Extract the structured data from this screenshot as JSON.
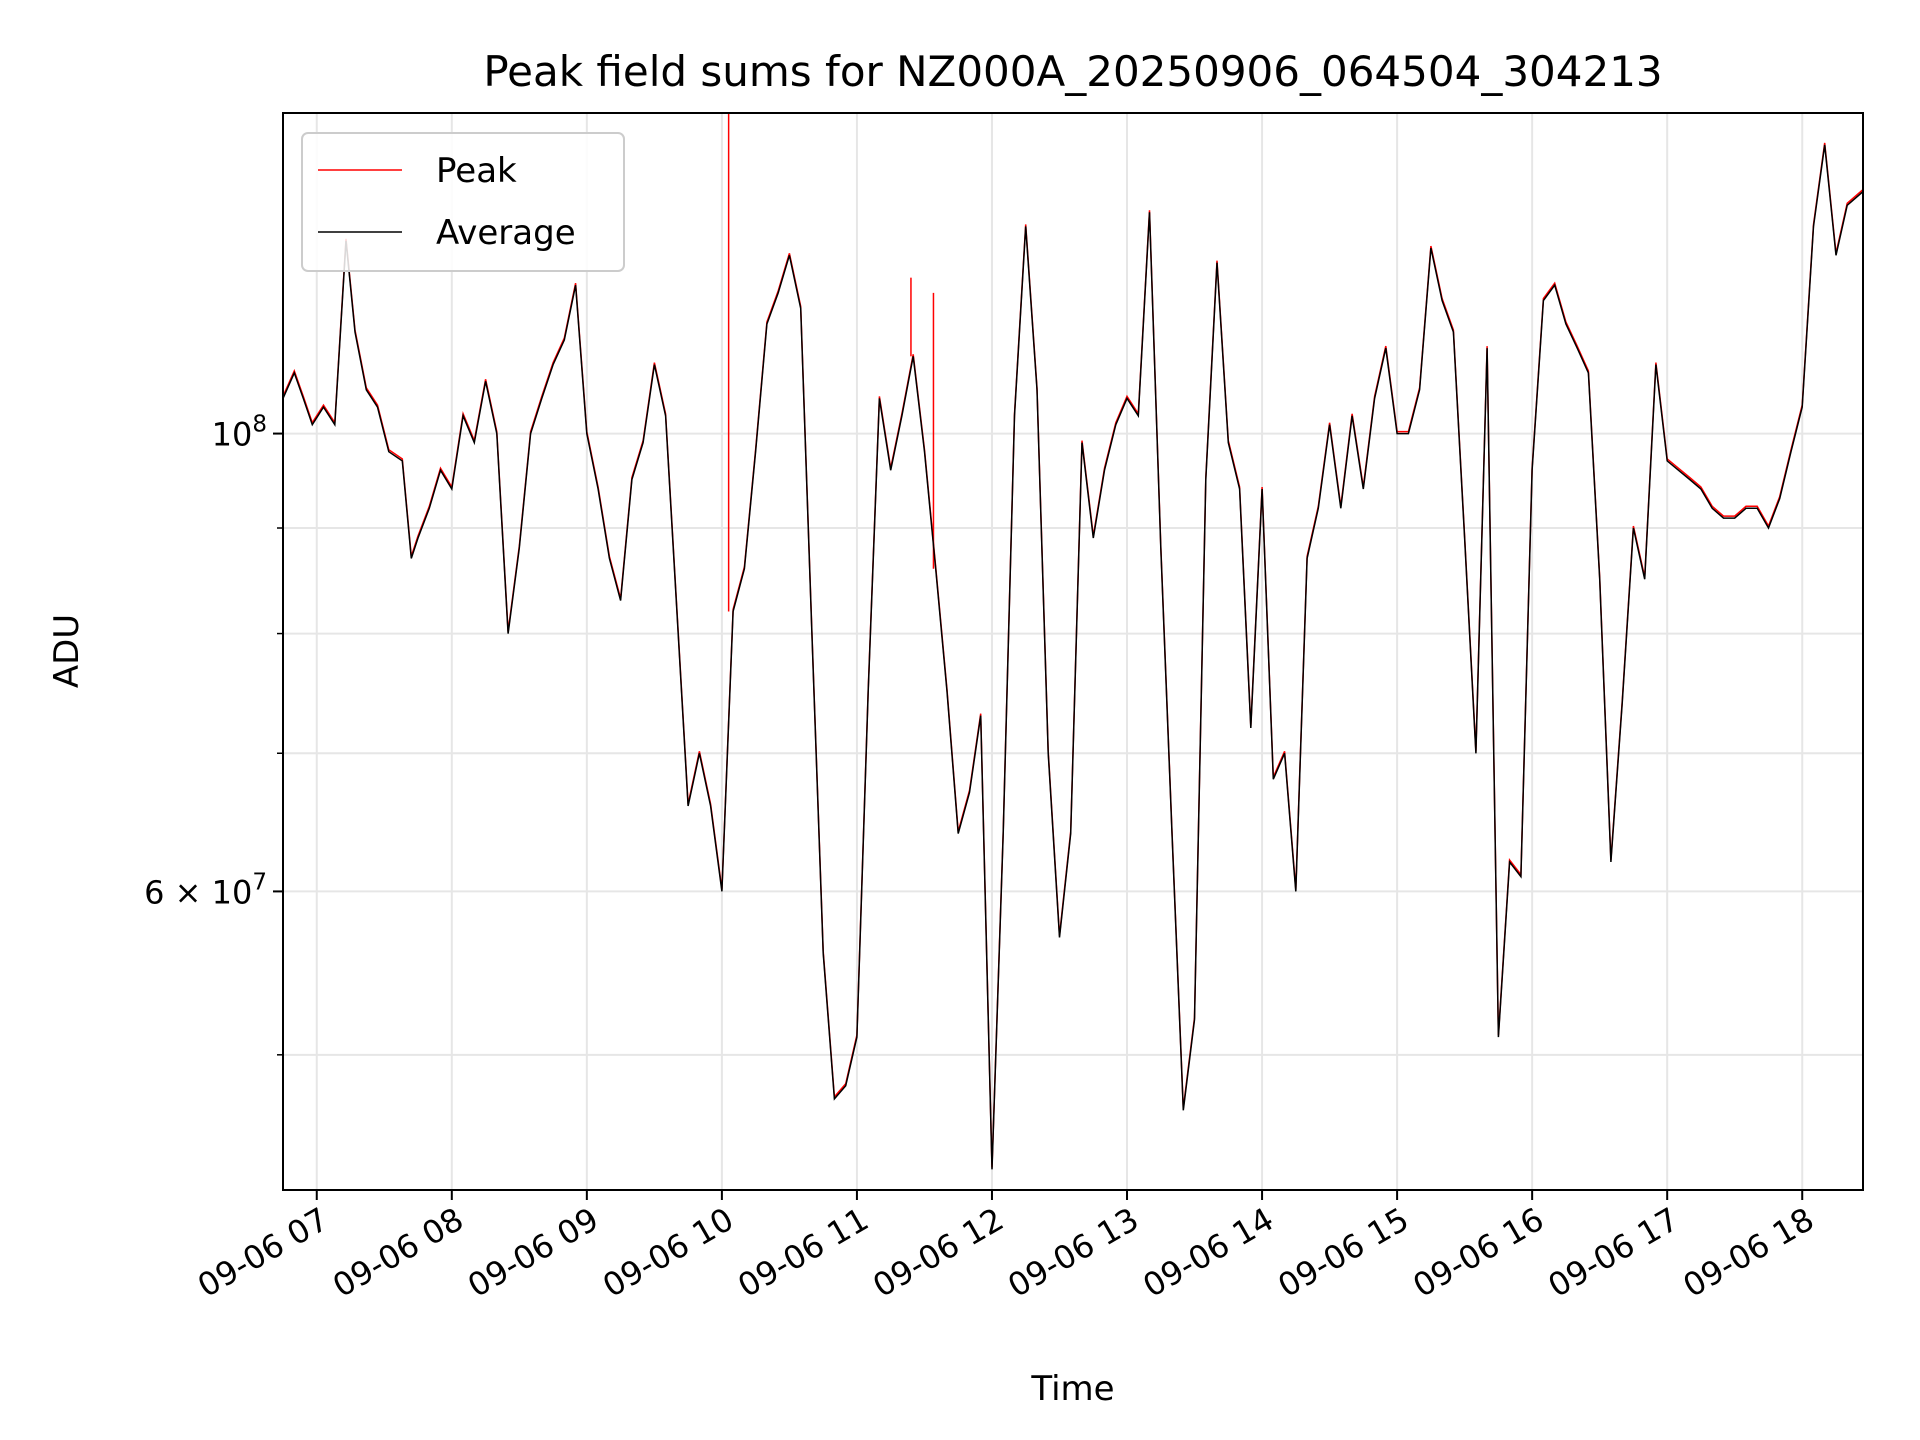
{
  "chart_data": {
    "type": "line",
    "title": "Peak field sums for NZ000A_20250906_064504_304213",
    "xlabel": "Time",
    "ylabel": "ADU",
    "y_scale": "log",
    "ylim": [
      43000000,
      143000000
    ],
    "xlim": [
      "09-06 06:45",
      "09-06 18:27"
    ],
    "x_ticks": [
      "09-06 07",
      "09-06 08",
      "09-06 09",
      "09-06 10",
      "09-06 11",
      "09-06 12",
      "09-06 13",
      "09-06 14",
      "09-06 15",
      "09-06 16",
      "09-06 17",
      "09-06 18"
    ],
    "y_ticks": [
      {
        "value": 100000000,
        "base": "10",
        "exp": "8"
      },
      {
        "value": 60000000,
        "base": "6 × 10",
        "exp": "7"
      }
    ],
    "grid": true,
    "legend": "top-left",
    "series": [
      {
        "name": "Average",
        "color": "#000000",
        "points": [
          [
            "09-06 06:45",
            104000000.0
          ],
          [
            "09-06 06:50",
            107000000.0
          ],
          [
            "09-06 06:54",
            104000000.0
          ],
          [
            "09-06 06:58",
            101000000.0
          ],
          [
            "09-06 07:03",
            103000000.0
          ],
          [
            "09-06 07:08",
            101000000.0
          ],
          [
            "09-06 07:13",
            124000000.0
          ],
          [
            "09-06 07:17",
            112000000.0
          ],
          [
            "09-06 07:22",
            105000000.0
          ],
          [
            "09-06 07:27",
            103000000.0
          ],
          [
            "09-06 07:32",
            98000000.0
          ],
          [
            "09-06 07:38",
            97000000.0
          ],
          [
            "09-06 07:42",
            87000000.0
          ],
          [
            "09-06 07:45",
            89000000.0
          ],
          [
            "09-06 07:50",
            92000000.0
          ],
          [
            "09-06 07:55",
            96000000.0
          ],
          [
            "09-06 08:00",
            94000000.0
          ],
          [
            "09-06 08:05",
            102000000.0
          ],
          [
            "09-06 08:10",
            99000000.0
          ],
          [
            "09-06 08:15",
            106000000.0
          ],
          [
            "09-06 08:20",
            100000000.0
          ],
          [
            "09-06 08:25",
            80000000.0
          ],
          [
            "09-06 08:30",
            88000000.0
          ],
          [
            "09-06 08:35",
            100000000.0
          ],
          [
            "09-06 08:40",
            104000000.0
          ],
          [
            "09-06 08:45",
            108000000.0
          ],
          [
            "09-06 08:50",
            111000000.0
          ],
          [
            "09-06 08:55",
            118000000.0
          ],
          [
            "09-06 09:00",
            100000000.0
          ],
          [
            "09-06 09:05",
            94000000.0
          ],
          [
            "09-06 09:10",
            87000000.0
          ],
          [
            "09-06 09:15",
            83000000.0
          ],
          [
            "09-06 09:20",
            95000000.0
          ],
          [
            "09-06 09:25",
            99000000.0
          ],
          [
            "09-06 09:30",
            108000000.0
          ],
          [
            "09-06 09:35",
            102000000.0
          ],
          [
            "09-06 09:40",
            82000000.0
          ],
          [
            "09-06 09:45",
            66000000.0
          ],
          [
            "09-06 09:50",
            70000000.0
          ],
          [
            "09-06 09:55",
            66000000.0
          ],
          [
            "09-06 10:00",
            60000000.0
          ],
          [
            "09-06 10:05",
            82000000.0
          ],
          [
            "09-06 10:10",
            86000000.0
          ],
          [
            "09-06 10:15",
            98000000.0
          ],
          [
            "09-06 10:20",
            113000000.0
          ],
          [
            "09-06 10:25",
            117000000.0
          ],
          [
            "09-06 10:30",
            122000000.0
          ],
          [
            "09-06 10:35",
            115000000.0
          ],
          [
            "09-06 10:40",
            80000000.0
          ],
          [
            "09-06 10:45",
            56000000.0
          ],
          [
            "09-06 10:50",
            47600000.0
          ],
          [
            "09-06 10:55",
            48300000.0
          ],
          [
            "09-06 11:00",
            51000000.0
          ],
          [
            "09-06 11:05",
            75000000.0
          ],
          [
            "09-06 11:10",
            104000000.0
          ],
          [
            "09-06 11:15",
            96000000.0
          ],
          [
            "09-06 11:20",
            102000000.0
          ],
          [
            "09-06 11:25",
            109000000.0
          ],
          [
            "09-06 11:30",
            98000000.0
          ],
          [
            "09-06 11:35",
            86000000.0
          ],
          [
            "09-06 11:40",
            75000000.0
          ],
          [
            "09-06 11:45",
            64000000.0
          ],
          [
            "09-06 11:50",
            67000000.0
          ],
          [
            "09-06 11:55",
            73000000.0
          ],
          [
            "09-06 12:00",
            44000000.0
          ],
          [
            "09-06 12:05",
            64000000.0
          ],
          [
            "09-06 12:10",
            102000000.0
          ],
          [
            "09-06 12:15",
            126000000.0
          ],
          [
            "09-06 12:20",
            105000000.0
          ],
          [
            "09-06 12:25",
            70000000.0
          ],
          [
            "09-06 12:30",
            57000000.0
          ],
          [
            "09-06 12:35",
            64000000.0
          ],
          [
            "09-06 12:40",
            99000000.0
          ],
          [
            "09-06 12:45",
            89000000.0
          ],
          [
            "09-06 12:50",
            96000000.0
          ],
          [
            "09-06 12:55",
            101000000.0
          ],
          [
            "09-06 13:00",
            104000000.0
          ],
          [
            "09-06 13:05",
            102000000.0
          ],
          [
            "09-06 13:10",
            128000000.0
          ],
          [
            "09-06 13:15",
            88000000.0
          ],
          [
            "09-06 13:20",
            64000000.0
          ],
          [
            "09-06 13:25",
            47000000.0
          ],
          [
            "09-06 13:30",
            52000000.0
          ],
          [
            "09-06 13:35",
            95000000.0
          ],
          [
            "09-06 13:40",
            121000000.0
          ],
          [
            "09-06 13:45",
            99000000.0
          ],
          [
            "09-06 13:50",
            94000000.0
          ],
          [
            "09-06 13:55",
            72000000.0
          ],
          [
            "09-06 14:00",
            94000000.0
          ],
          [
            "09-06 14:05",
            68000000.0
          ],
          [
            "09-06 14:10",
            70000000.0
          ],
          [
            "09-06 14:15",
            60000000.0
          ],
          [
            "09-06 14:20",
            87000000.0
          ],
          [
            "09-06 14:25",
            92000000.0
          ],
          [
            "09-06 14:30",
            101000000.0
          ],
          [
            "09-06 14:35",
            92000000.0
          ],
          [
            "09-06 14:40",
            102000000.0
          ],
          [
            "09-06 14:45",
            94000000.0
          ],
          [
            "09-06 14:50",
            104000000.0
          ],
          [
            "09-06 14:55",
            110000000.0
          ],
          [
            "09-06 15:00",
            100000000.0
          ],
          [
            "09-06 15:05",
            100000000.0
          ],
          [
            "09-06 15:10",
            105000000.0
          ],
          [
            "09-06 15:15",
            123000000.0
          ],
          [
            "09-06 15:20",
            116000000.0
          ],
          [
            "09-06 15:25",
            112000000.0
          ],
          [
            "09-06 15:30",
            89000000.0
          ],
          [
            "09-06 15:35",
            70000000.0
          ],
          [
            "09-06 15:40",
            110000000.0
          ],
          [
            "09-06 15:45",
            51000000.0
          ],
          [
            "09-06 15:50",
            62000000.0
          ],
          [
            "09-06 15:55",
            61000000.0
          ],
          [
            "09-06 16:00",
            96000000.0
          ],
          [
            "09-06 16:05",
            116000000.0
          ],
          [
            "09-06 16:10",
            118000000.0
          ],
          [
            "09-06 16:15",
            113000000.0
          ],
          [
            "09-06 16:20",
            110000000.0
          ],
          [
            "09-06 16:25",
            107000000.0
          ],
          [
            "09-06 16:30",
            85000000.0
          ],
          [
            "09-06 16:35",
            62000000.0
          ],
          [
            "09-06 16:40",
            74000000.0
          ],
          [
            "09-06 16:45",
            90000000.0
          ],
          [
            "09-06 16:50",
            85000000.0
          ],
          [
            "09-06 16:55",
            108000000.0
          ],
          [
            "09-06 17:00",
            97000000.0
          ],
          [
            "09-06 17:05",
            96000000.0
          ],
          [
            "09-06 17:10",
            95000000.0
          ],
          [
            "09-06 17:15",
            94000000.0
          ],
          [
            "09-06 17:20",
            92000000.0
          ],
          [
            "09-06 17:25",
            91000000.0
          ],
          [
            "09-06 17:30",
            91000000.0
          ],
          [
            "09-06 17:35",
            92000000.0
          ],
          [
            "09-06 17:40",
            92000000.0
          ],
          [
            "09-06 17:45",
            90000000.0
          ],
          [
            "09-06 17:50",
            93000000.0
          ],
          [
            "09-06 17:55",
            98000000.0
          ],
          [
            "09-06 18:00",
            103000000.0
          ],
          [
            "09-06 18:05",
            126000000.0
          ],
          [
            "09-06 18:10",
            138000000.0
          ],
          [
            "09-06 18:15",
            122000000.0
          ],
          [
            "09-06 18:20",
            129000000.0
          ],
          [
            "09-06 18:27",
            131000000.0
          ]
        ]
      },
      {
        "name": "Peak",
        "color": "#ff0000",
        "spikes": [
          [
            "09-06 10:03",
            145000000.0
          ],
          [
            "09-06 11:24",
            119000000.0
          ],
          [
            "09-06 11:34",
            117000000.0
          ]
        ]
      }
    ]
  }
}
